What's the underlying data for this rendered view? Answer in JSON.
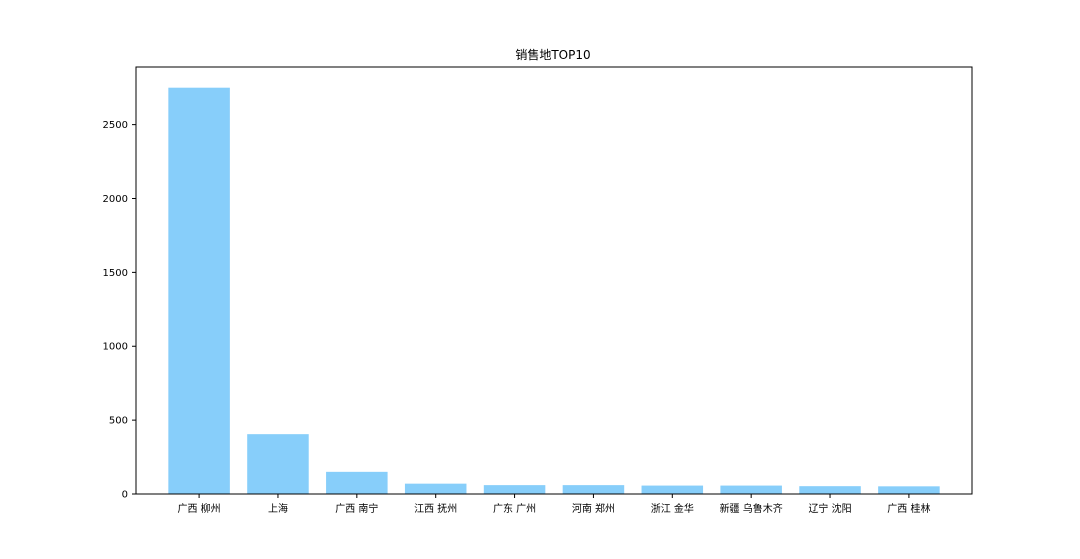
{
  "chart_data": {
    "type": "bar",
    "title": "销售地TOP10",
    "xlabel": "",
    "ylabel": "",
    "categories": [
      "广西 柳州",
      "上海",
      "广西 南宁",
      "江西 抚州",
      "广东 广州",
      "河南 郑州",
      "浙江 金华",
      "新疆 乌鲁木齐",
      "辽宁 沈阳",
      "广西 桂林"
    ],
    "values": [
      2750,
      405,
      150,
      70,
      60,
      60,
      57,
      57,
      53,
      52
    ],
    "ylim": [
      0,
      2890
    ],
    "yticks": [
      0,
      500,
      1000,
      1500,
      2000,
      2500
    ],
    "bar_color": "#87CEFA",
    "grid": false,
    "legend": "none"
  }
}
